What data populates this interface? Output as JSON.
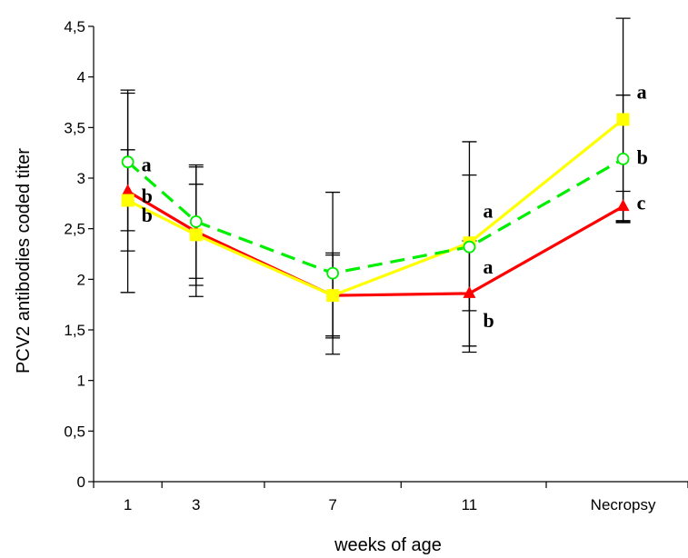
{
  "chart_data": {
    "type": "line",
    "title": "",
    "xlabel": "weeks of age",
    "ylabel": "PCV2 antibodies coded titer",
    "categories": [
      "1",
      "3",
      "7",
      "11",
      "Necropsy"
    ],
    "x": [
      1,
      3,
      7,
      11,
      15.5
    ],
    "ylim": [
      0,
      4.5
    ],
    "yticks": [
      "0",
      "0,5",
      "1",
      "1,5",
      "2",
      "2,5",
      "3",
      "3,5",
      "4",
      "4,5"
    ],
    "grid": false,
    "legend": "none",
    "series": [
      {
        "color": "#ff0000",
        "marker": "triangle",
        "dash": "solid",
        "values": [
          2.87,
          2.47,
          1.84,
          1.86,
          2.72
        ],
        "error": [
          1.0,
          0.64,
          0.42,
          0.52,
          0.15
        ]
      },
      {
        "color": "#ffff00",
        "marker": "square",
        "dash": "solid",
        "values": [
          2.78,
          2.44,
          1.84,
          2.36,
          3.58
        ],
        "error": [
          0.5,
          0.5,
          0.4,
          0.67,
          1.0
        ]
      },
      {
        "color": "#00ee00",
        "marker": "circle",
        "dash": "dashed",
        "values": [
          3.16,
          2.57,
          2.06,
          2.32,
          3.19
        ],
        "error": [
          0.68,
          0.56,
          0.8,
          1.04,
          0.63
        ]
      }
    ],
    "annotations": [
      {
        "text": "a",
        "x": 1,
        "y": 3.14
      },
      {
        "text": "b",
        "x": 1,
        "y": 2.83
      },
      {
        "text": "b",
        "x": 1,
        "y": 2.64
      },
      {
        "text": "a",
        "x": 11,
        "y": 2.68
      },
      {
        "text": "a",
        "x": 11,
        "y": 2.13
      },
      {
        "text": "b",
        "x": 11,
        "y": 1.6
      },
      {
        "text": "a",
        "x": 15.5,
        "y": 3.86
      },
      {
        "text": "b",
        "x": 15.5,
        "y": 3.21
      },
      {
        "text": "c",
        "x": 15.5,
        "y": 2.76
      }
    ]
  }
}
